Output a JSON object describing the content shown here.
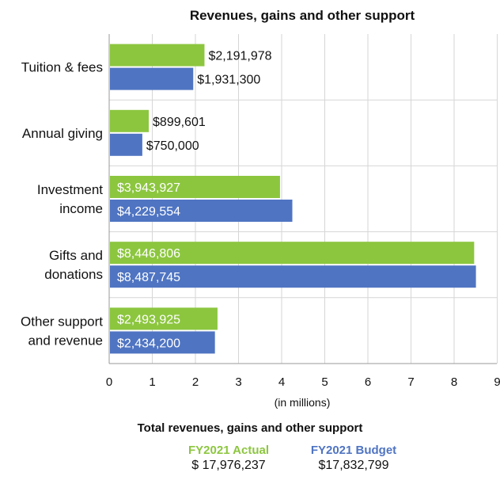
{
  "chart_data": {
    "type": "bar",
    "orientation": "horizontal",
    "title": "Revenues, gains and other support",
    "xlabel": "(in millions)",
    "ylabel": "",
    "xlim": [
      0,
      9
    ],
    "xticks": [
      0,
      1,
      2,
      3,
      4,
      5,
      6,
      7,
      8,
      9
    ],
    "grid": "vertical",
    "categories": [
      [
        "Tuition & fees"
      ],
      [
        "Annual giving"
      ],
      [
        "Investment",
        "income"
      ],
      [
        "Gifts and",
        "donations"
      ],
      [
        "Other support",
        "and revenue"
      ]
    ],
    "series": [
      {
        "name": "FY2021 Actual",
        "color": "#8cc63f",
        "values": [
          2.191978,
          0.899601,
          3.943927,
          8.446806,
          2.493925
        ],
        "labels": [
          "$2,191,978",
          "$899,601",
          "$3,943,927",
          "$8,446,806",
          "$2,493,925"
        ]
      },
      {
        "name": "FY2021 Budget",
        "color": "#4f74c2",
        "values": [
          1.9313,
          0.75,
          4.229554,
          8.487745,
          2.4342
        ],
        "labels": [
          "$1,931,300",
          "$750,000",
          "$4,229,554",
          "$8,487,745",
          "$2,434,200"
        ]
      }
    ]
  },
  "totals": {
    "title": "Total revenues, gains and other support",
    "actual": {
      "label": "FY2021 Actual",
      "value": "$ 17,976,237",
      "color": "#8cc63f"
    },
    "budget": {
      "label": "FY2021 Budget",
      "value": "$17,832,799",
      "color": "#4f74c2"
    }
  }
}
